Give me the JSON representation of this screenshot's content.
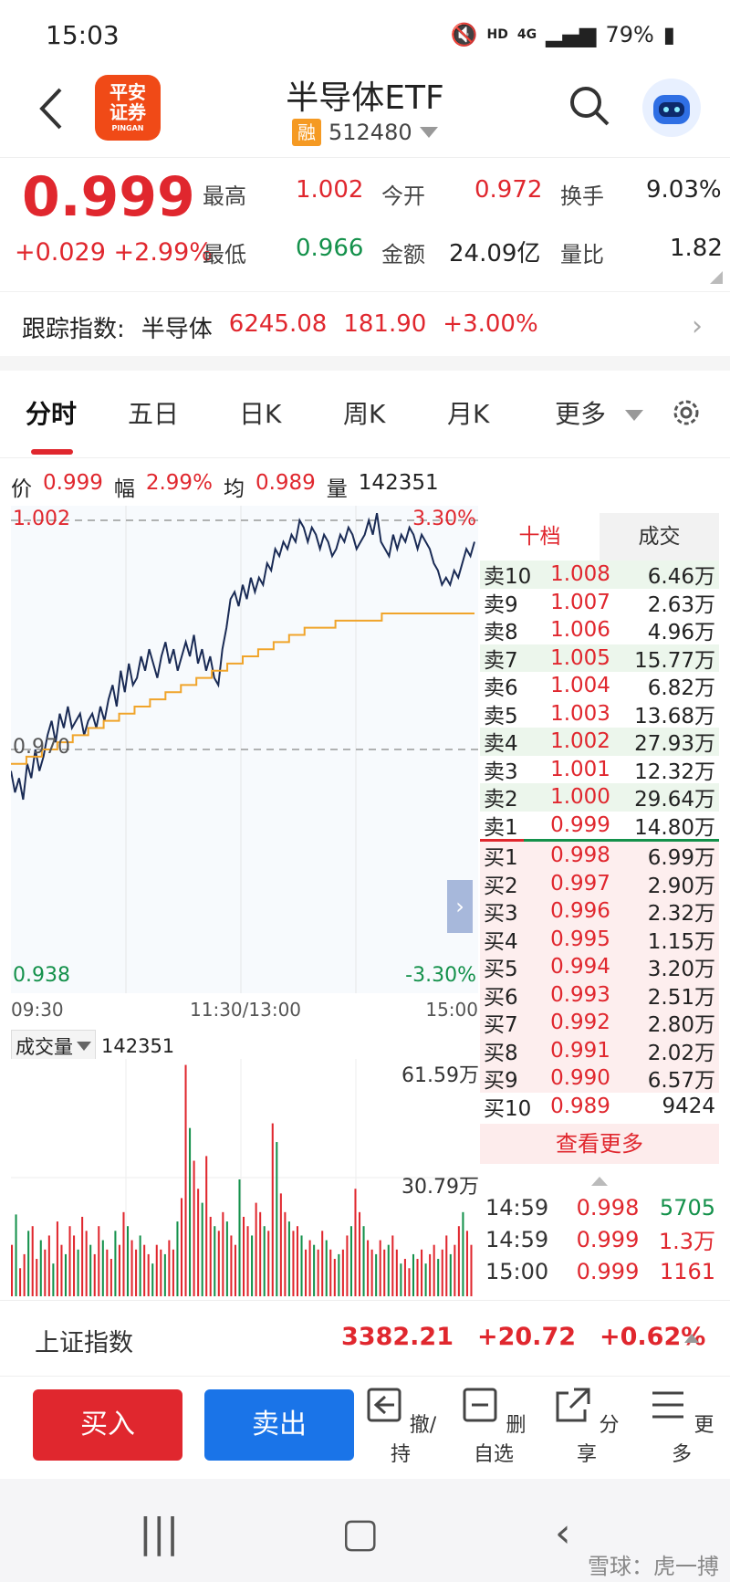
{
  "status_bar": {
    "time": "15:03",
    "net1": "HD",
    "net2": "4G",
    "battery": "79%"
  },
  "header": {
    "logo_top": "平安",
    "logo_bottom": "证券",
    "logo_small": "PINGAN",
    "title": "半导体ETF",
    "badge": "融",
    "code": "512480"
  },
  "quote": {
    "price": "0.999",
    "change": "+0.029",
    "change_pct": "+2.99%",
    "items": [
      {
        "label": "最高",
        "value": "1.002"
      },
      {
        "label": "今开",
        "value": "0.972"
      },
      {
        "label": "换手",
        "value": "9.03%"
      },
      {
        "label": "最低",
        "value": "0.966"
      },
      {
        "label": "金额",
        "value": "24.09亿"
      },
      {
        "label": "量比",
        "value": "1.82"
      }
    ]
  },
  "tracking": {
    "label": "跟踪指数:",
    "name": "半导体",
    "value": "6245.08",
    "change": "181.90",
    "pct": "+3.00%"
  },
  "tabs": [
    "分时",
    "五日",
    "日K",
    "周K",
    "月K",
    "更多"
  ],
  "info_line": {
    "price_label": "价",
    "price": "0.999",
    "amp_label": "幅",
    "amp": "2.99%",
    "avg_label": "均",
    "avg": "0.989",
    "vol_label": "量",
    "vol": "142351"
  },
  "chart_data": {
    "type": "line",
    "ylim": [
      0.938,
      1.002
    ],
    "y_left_top": "1.002",
    "y_left_mid": "0.970",
    "y_left_bottom": "0.938",
    "y_right_top": "3.30%",
    "y_right_bottom": "-3.30%",
    "x_ticks": [
      "09:30",
      "11:30/13:00",
      "15:00"
    ],
    "series": [
      {
        "values": [
          0.967,
          0.964,
          0.966,
          0.963,
          0.968,
          0.966,
          0.97,
          0.967,
          0.969,
          0.972,
          0.974,
          0.971,
          0.975,
          0.973,
          0.976,
          0.973,
          0.974,
          0.975,
          0.972,
          0.974,
          0.975,
          0.973,
          0.976,
          0.974,
          0.977,
          0.979,
          0.976,
          0.981,
          0.978,
          0.982,
          0.979,
          0.98,
          0.983,
          0.981,
          0.984,
          0.982,
          0.98,
          0.983,
          0.985,
          0.982,
          0.984,
          0.981,
          0.983,
          0.985,
          0.983,
          0.986,
          0.982,
          0.984,
          0.981,
          0.983,
          0.98,
          0.979,
          0.984,
          0.987,
          0.991,
          0.992,
          0.99,
          0.993,
          0.991,
          0.994,
          0.992,
          0.994,
          0.993,
          0.996,
          0.995,
          0.998,
          0.997,
          0.999,
          0.998,
          1.0,
          0.999,
          1.002,
          1.001,
          0.999,
          1.001,
          1.0,
          0.998,
          1.0,
          0.999,
          0.997,
          0.998,
          1.0,
          0.999,
          1.001,
          1.0,
          0.998,
          0.999,
          1.0,
          1.002,
          1.0,
          1.003,
          0.999,
          0.998,
          0.997,
          1.0,
          0.998,
          1.0,
          0.999,
          1.001,
          1.0,
          0.998,
          1.0,
          0.999,
          0.998,
          0.996,
          0.995,
          0.993,
          0.994,
          0.993,
          0.995,
          0.994,
          0.996,
          0.998,
          0.997,
          0.999
        ]
      },
      {
        "values": [
          0.968,
          0.969,
          0.97,
          0.971,
          0.972,
          0.973,
          0.974,
          0.975,
          0.976,
          0.977,
          0.978,
          0.979,
          0.98,
          0.981,
          0.982,
          0.983,
          0.984,
          0.985,
          0.986,
          0.987,
          0.987,
          0.988,
          0.988,
          0.988,
          0.989,
          0.989,
          0.989,
          0.989,
          0.989,
          0.989
        ]
      }
    ]
  },
  "volume": {
    "label": "成交量",
    "value": "142351",
    "max_label": "61.59万",
    "mid_label": "30.79万",
    "bars": [
      0.22,
      0.35,
      0.12,
      0.18,
      0.28,
      0.3,
      0.16,
      0.24,
      0.2,
      0.26,
      0.14,
      0.32,
      0.22,
      0.18,
      0.3,
      0.26,
      0.2,
      0.34,
      0.28,
      0.22,
      0.18,
      0.3,
      0.24,
      0.2,
      0.16,
      0.28,
      0.22,
      0.36,
      0.3,
      0.24,
      0.2,
      0.26,
      0.22,
      0.18,
      0.14,
      0.22,
      0.2,
      0.18,
      0.24,
      0.2,
      0.32,
      0.42,
      0.99,
      0.72,
      0.58,
      0.46,
      0.4,
      0.6,
      0.34,
      0.3,
      0.28,
      0.36,
      0.32,
      0.26,
      0.22,
      0.5,
      0.34,
      0.3,
      0.26,
      0.4,
      0.36,
      0.3,
      0.28,
      0.74,
      0.66,
      0.44,
      0.36,
      0.32,
      0.28,
      0.3,
      0.26,
      0.2,
      0.24,
      0.22,
      0.2,
      0.28,
      0.24,
      0.2,
      0.16,
      0.18,
      0.2,
      0.26,
      0.3,
      0.46,
      0.36,
      0.3,
      0.24,
      0.2,
      0.18,
      0.24,
      0.2,
      0.22,
      0.26,
      0.2,
      0.14,
      0.16,
      0.12,
      0.18,
      0.16,
      0.2,
      0.14,
      0.18,
      0.22,
      0.16,
      0.2,
      0.26,
      0.18,
      0.22,
      0.3,
      0.36,
      0.28,
      0.22
    ]
  },
  "order_book": {
    "tab_active": "十档",
    "tab_other": "成交",
    "asks": [
      {
        "label": "卖10",
        "price": "1.008",
        "vol": "6.46万"
      },
      {
        "label": "卖9",
        "price": "1.007",
        "vol": "2.63万"
      },
      {
        "label": "卖8",
        "price": "1.006",
        "vol": "4.96万"
      },
      {
        "label": "卖7",
        "price": "1.005",
        "vol": "15.77万"
      },
      {
        "label": "卖6",
        "price": "1.004",
        "vol": "6.82万"
      },
      {
        "label": "卖5",
        "price": "1.003",
        "vol": "13.68万"
      },
      {
        "label": "卖4",
        "price": "1.002",
        "vol": "27.93万"
      },
      {
        "label": "卖3",
        "price": "1.001",
        "vol": "12.32万"
      },
      {
        "label": "卖2",
        "price": "1.000",
        "vol": "29.64万"
      },
      {
        "label": "卖1",
        "price": "0.999",
        "vol": "14.80万"
      }
    ],
    "bids": [
      {
        "label": "买1",
        "price": "0.998",
        "vol": "6.99万"
      },
      {
        "label": "买2",
        "price": "0.997",
        "vol": "2.90万"
      },
      {
        "label": "买3",
        "price": "0.996",
        "vol": "2.32万"
      },
      {
        "label": "买4",
        "price": "0.995",
        "vol": "1.15万"
      },
      {
        "label": "买5",
        "price": "0.994",
        "vol": "3.20万"
      },
      {
        "label": "买6",
        "price": "0.993",
        "vol": "2.51万"
      },
      {
        "label": "买7",
        "price": "0.992",
        "vol": "2.80万"
      },
      {
        "label": "买8",
        "price": "0.991",
        "vol": "2.02万"
      },
      {
        "label": "买9",
        "price": "0.990",
        "vol": "6.57万"
      },
      {
        "label": "买10",
        "price": "0.989",
        "vol": "9424"
      }
    ],
    "more": "查看更多",
    "ticks": [
      {
        "time": "14:59",
        "price": "0.998",
        "vol": "5705",
        "dir": "green"
      },
      {
        "time": "14:59",
        "price": "0.999",
        "vol": "1.3万",
        "dir": "red"
      },
      {
        "time": "15:00",
        "price": "0.999",
        "vol": "1161",
        "dir": "red"
      }
    ]
  },
  "index_bar": {
    "name": "上证指数",
    "value": "3382.21",
    "change": "+20.72",
    "pct": "+0.62%"
  },
  "actions": {
    "buy": "买入",
    "sell": "卖出",
    "cancel": "撤/持",
    "remove": "删自选",
    "share": "分享",
    "more": "更多"
  },
  "watermark": "雪球：虎一搏",
  "colors": {
    "up": "#e0272e",
    "down": "#14914b",
    "sell_btn": "#1a74e8"
  }
}
